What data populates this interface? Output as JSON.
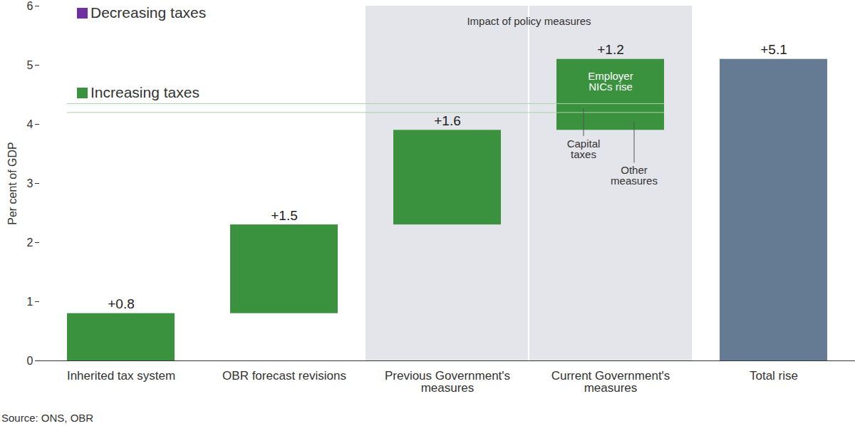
{
  "chart_data": {
    "type": "waterfall",
    "y_label": "Per cent of GDP",
    "categories": [
      "Inherited tax system",
      "OBR forecast revisions",
      "Previous Government's measures",
      "Current Government's measures",
      "Total rise"
    ],
    "values": [
      0.8,
      1.5,
      1.6,
      1.2,
      5.1
    ],
    "value_labels": [
      "+0.8",
      "+1.5",
      "+1.6",
      "+1.2",
      "+5.1"
    ],
    "is_total": [
      false,
      false,
      false,
      false,
      true
    ],
    "colors": [
      "#3a923e",
      "#3a923e",
      "#3a923e",
      "#3a923e",
      "#657b93"
    ],
    "segments": {
      "category": "Current Government's measures",
      "parts": [
        {
          "name": "Other measures",
          "value": 0.3
        },
        {
          "name": "Capital taxes",
          "value": 0.15
        },
        {
          "name": "Employer NICs rise",
          "value": 0.75
        }
      ]
    },
    "shaded_region": {
      "label": "Impact of policy measures",
      "categories": [
        "Previous Government's measures",
        "Current Government's measures"
      ]
    },
    "legend": "top-left",
    "legend_entries": [
      {
        "name": "Decreasing taxes",
        "color": "#7030a0"
      },
      {
        "name": "Increasing taxes",
        "color": "#3a923e"
      }
    ],
    "ylim": [
      0,
      6
    ],
    "yticks": [
      0,
      1,
      2,
      3,
      4,
      5,
      6
    ],
    "data_labels": true,
    "source": "Source: ONS, OBR"
  }
}
